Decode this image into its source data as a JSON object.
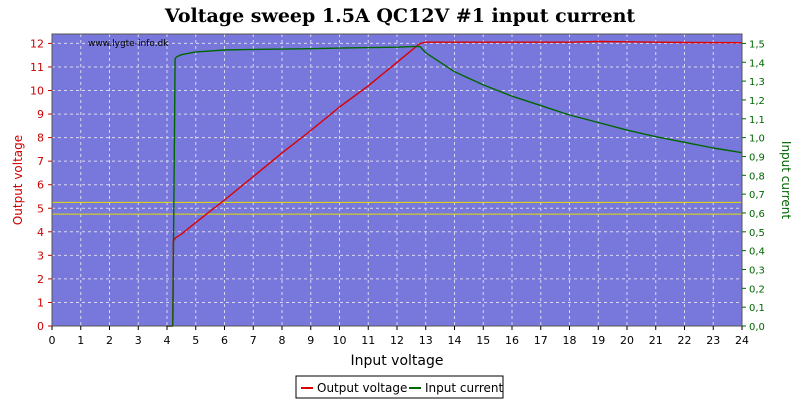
{
  "chart_data": {
    "type": "line",
    "title": "Voltage sweep 1.5A QC12V #1 input current",
    "watermark": "www.lygte-info.dk",
    "xlabel": "Input voltage",
    "ylabel_left": "Output voltage",
    "ylabel_right": "Input current",
    "xlim": [
      0,
      24
    ],
    "ylim_left": [
      0,
      12.4
    ],
    "ylim_right": [
      0,
      1.55
    ],
    "x_ticks": [
      "0",
      "1",
      "2",
      "3",
      "4",
      "5",
      "6",
      "7",
      "8",
      "9",
      "10",
      "11",
      "12",
      "13",
      "14",
      "15",
      "16",
      "17",
      "18",
      "19",
      "20",
      "21",
      "22",
      "23",
      "24"
    ],
    "y_left_ticks": [
      "0",
      "1",
      "2",
      "3",
      "4",
      "5",
      "6",
      "7",
      "8",
      "9",
      "10",
      "11",
      "12"
    ],
    "y_right_ticks": [
      "0,0",
      "0,1",
      "0,2",
      "0,3",
      "0,4",
      "0,5",
      "0,6",
      "0,7",
      "0,8",
      "0,9",
      "1,0",
      "1,1",
      "1,2",
      "1,3",
      "1,4",
      "1,5"
    ],
    "grid": true,
    "legend_position": "bottom-center",
    "colors": {
      "plot_bg": "#7878dc",
      "output_voltage": "#dd0000",
      "input_current": "#006600",
      "reference_lines": "#e0e000"
    },
    "reference_lines_left": [
      4.75,
      5.25
    ],
    "series": [
      {
        "name": "Output voltage",
        "axis": "left",
        "x": [
          4.0,
          4.2,
          4.22,
          4.3,
          4.5,
          5.0,
          6.0,
          7.0,
          8.0,
          9.0,
          10.0,
          11.0,
          12.0,
          12.8,
          13.0,
          15.0,
          18.0,
          19.0,
          21.0,
          22.0,
          24.0
        ],
        "values": [
          0.0,
          0.0,
          3.6,
          3.75,
          3.9,
          4.4,
          5.35,
          6.35,
          7.35,
          8.3,
          9.3,
          10.2,
          11.2,
          12.0,
          12.05,
          12.05,
          12.05,
          12.08,
          12.05,
          12.04,
          12.03
        ]
      },
      {
        "name": "Input current",
        "axis": "right",
        "x": [
          4.0,
          4.2,
          4.28,
          4.35,
          4.5,
          5.0,
          6.0,
          7.0,
          8.0,
          9.0,
          10.0,
          11.0,
          12.0,
          12.5,
          12.8,
          13.0,
          14.0,
          15.0,
          16.0,
          17.0,
          18.0,
          19.0,
          20.0,
          21.0,
          22.0,
          23.0,
          24.0
        ],
        "values": [
          0.0,
          0.0,
          1.42,
          1.43,
          1.44,
          1.455,
          1.465,
          1.468,
          1.47,
          1.472,
          1.475,
          1.478,
          1.48,
          1.483,
          1.483,
          1.45,
          1.35,
          1.28,
          1.22,
          1.17,
          1.12,
          1.08,
          1.04,
          1.005,
          0.975,
          0.945,
          0.92
        ]
      }
    ]
  }
}
